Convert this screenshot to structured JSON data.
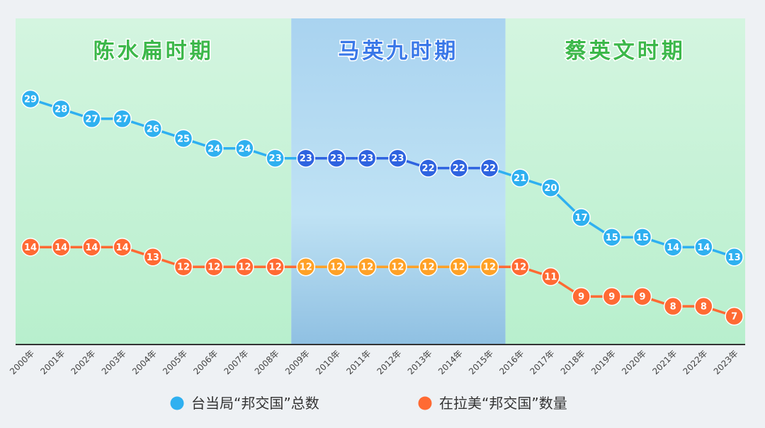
{
  "chart_data": {
    "type": "line",
    "title": "",
    "xlabel": "",
    "ylabel": "",
    "categories": [
      "2000年",
      "2001年",
      "2002年",
      "2003年",
      "2004年",
      "2005年",
      "2006年",
      "2007年",
      "2008年",
      "2009年",
      "2010年",
      "2011年",
      "2012年",
      "2013年",
      "2014年",
      "2015年",
      "2016年",
      "2017年",
      "2018年",
      "2019年",
      "2020年",
      "2021年",
      "2022年",
      "2023年"
    ],
    "series": [
      {
        "name": "台当局“邦交国”总数",
        "values": [
          29,
          28,
          27,
          27,
          26,
          25,
          24,
          24,
          23,
          23,
          23,
          23,
          23,
          22,
          22,
          22,
          21,
          20,
          17,
          15,
          15,
          14,
          14,
          13
        ],
        "color": "#2fb0f0",
        "highlight_color": "#2f63e0"
      },
      {
        "name": "在拉美“邦交国”数量",
        "values": [
          14,
          14,
          14,
          14,
          13,
          12,
          12,
          12,
          12,
          12,
          12,
          12,
          12,
          12,
          12,
          12,
          12,
          11,
          9,
          9,
          9,
          8,
          8,
          7
        ],
        "color": "#ff6a33",
        "highlight_color": "#ffa126"
      }
    ],
    "periods": [
      {
        "label": "陈水扁时期",
        "start": "2000年",
        "end": "2008年",
        "color": "#3cb84a",
        "bg": "#c8f2d8"
      },
      {
        "label": "马英九时期",
        "start": "2009年",
        "end": "2015年",
        "color": "#3a78e8",
        "bg": "#a4d0ee"
      },
      {
        "label": "蔡英文时期",
        "start": "2016年",
        "end": "2023年",
        "color": "#3cb84a",
        "bg": "#c8f2d8"
      }
    ],
    "highlight_period": "马英九时期",
    "legend_position": "bottom",
    "grid": false
  }
}
